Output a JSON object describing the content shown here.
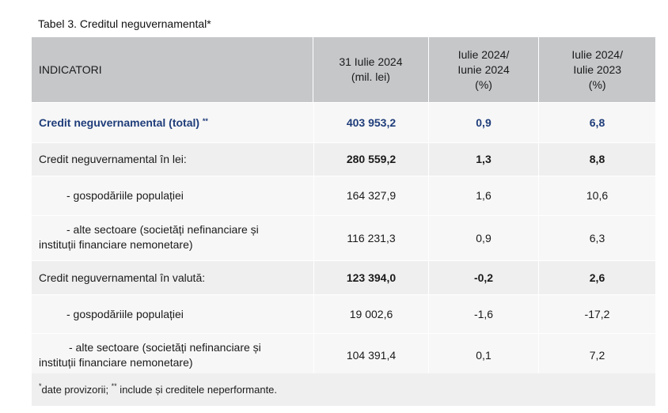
{
  "title": "Tabel 3. Creditul neguvernamental*",
  "header": {
    "col1": "INDICATORI",
    "col2": [
      "31 Iulie 2024",
      "(mil. lei)"
    ],
    "col3": [
      "Iulie 2024/",
      "Iunie 2024",
      "(%)"
    ],
    "col4": [
      "Iulie 2024/",
      "Iulie 2023",
      "(%)"
    ]
  },
  "rows": [
    {
      "label": "Credit neguvernamental (total)",
      "sup": "**",
      "v1": "403 953,2",
      "v2": "0,9",
      "v3": "6,8"
    },
    {
      "label": "Credit neguvernamental în lei:",
      "v1": "280 559,2",
      "v2": "1,3",
      "v3": "8,8"
    },
    {
      "label": "- gospodăriile populației",
      "v1": "164 327,9",
      "v2": "1,6",
      "v3": "10,6"
    },
    {
      "label_a": "- alte sectoare (societăți nefinanciare și",
      "label_b": "instituții financiare nemonetare)",
      "v1": "116 231,3",
      "v2": "0,9",
      "v3": "6,3"
    },
    {
      "label": "Credit neguvernamental în valută:",
      "v1": "123 394,0",
      "v2": "-0,2",
      "v3": "2,6"
    },
    {
      "label": "- gospodăriile populației",
      "v1": "19 002,6",
      "v2": "-1,6",
      "v3": "-17,2"
    },
    {
      "label_a": "- alte sectoare (societăți nefinanciare și",
      "label_b": "instituții financiare nemonetare)",
      "v1": "104 391,4",
      "v2": "0,1",
      "v3": "7,2"
    }
  ],
  "footnote": {
    "sup1": "*",
    "text1": "date provizorii; ",
    "sup2": "**",
    "text2": " include și creditele neperformante."
  }
}
